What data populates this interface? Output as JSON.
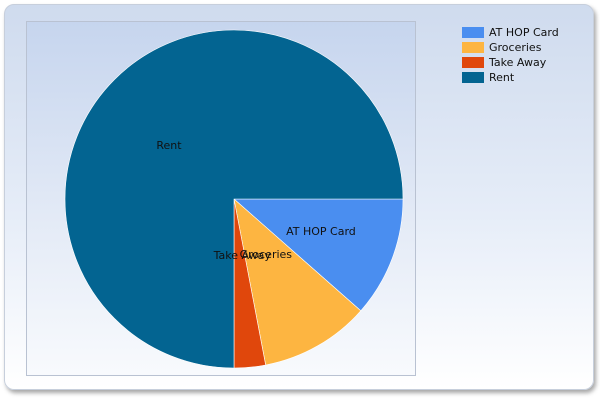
{
  "chart_data": {
    "type": "pie",
    "title": "",
    "categories": [
      "AT HOP Card",
      "Groceries",
      "Take Away",
      "Rent"
    ],
    "values": [
      11.5,
      10.5,
      3.0,
      75.0
    ],
    "colors": [
      "#4a8ef0",
      "#fdb541",
      "#e0470c",
      "#036491"
    ],
    "start_angle_deg": 90,
    "direction": "clockwise",
    "legend": {
      "placement": "top-right",
      "entries": [
        "AT HOP Card",
        "Groceries",
        "Take Away",
        "Rent"
      ]
    },
    "slice_labels": [
      "AT HOP Card",
      "Groceries",
      "Take Away",
      "Rent"
    ]
  }
}
